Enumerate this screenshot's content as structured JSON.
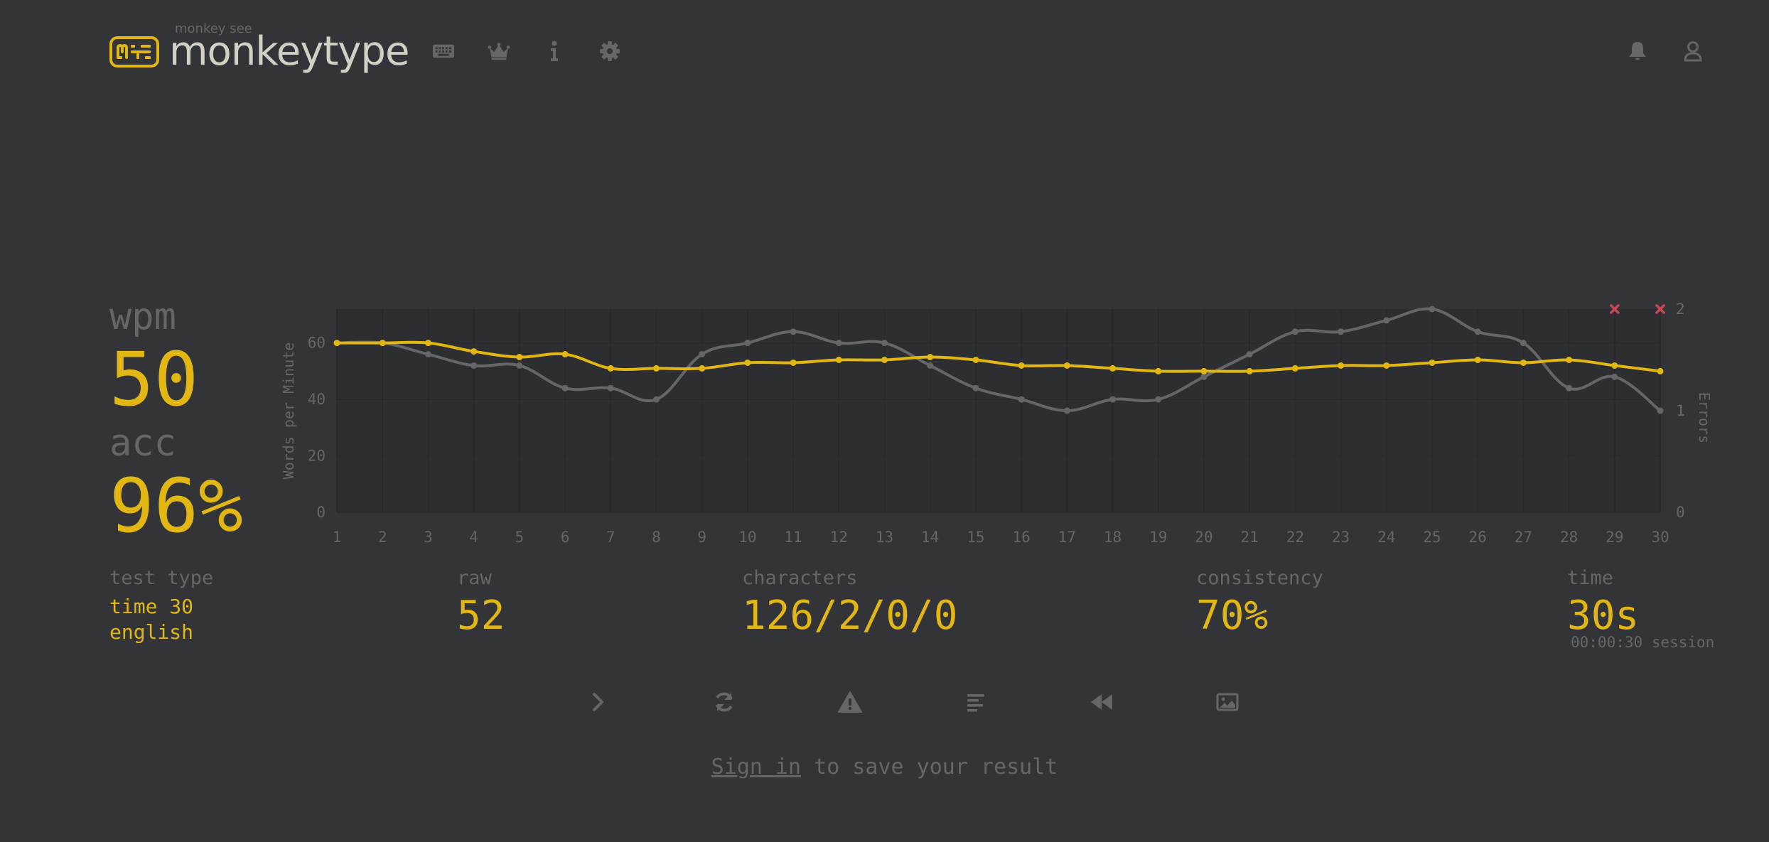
{
  "header": {
    "logo_top": "monkey see",
    "logo_text": "monkeytype",
    "nav_icons": [
      "keyboard-icon",
      "crown-icon",
      "info-icon",
      "gear-icon"
    ],
    "right_icons": [
      "bell-icon",
      "user-icon"
    ]
  },
  "result": {
    "wpm_label": "wpm",
    "wpm_value": "50",
    "acc_label": "acc",
    "acc_value": "96%"
  },
  "stats": {
    "test_type_label": "test type",
    "test_type_line1": "time 30",
    "test_type_line2": "english",
    "raw_label": "raw",
    "raw_value": "52",
    "characters_label": "characters",
    "characters_value": "126/2/0/0",
    "consistency_label": "consistency",
    "consistency_value": "70%",
    "time_label": "time",
    "time_value": "30s",
    "session_text": "00:00:30 session"
  },
  "actions": [
    "next-test-icon",
    "restart-icon",
    "warning-icon",
    "words-history-icon",
    "replay-icon",
    "screenshot-icon"
  ],
  "signin": {
    "link": "Sign in",
    "rest": " to save your result"
  },
  "colors": {
    "background": "#323437",
    "main": "#e2b714",
    "sub": "#646669",
    "text": "#d1d0c5",
    "error": "#ca4754"
  },
  "chart_data": {
    "type": "line",
    "ylabel": "Words per Minute",
    "y2label": "Errors",
    "x": [
      1,
      2,
      3,
      4,
      5,
      6,
      7,
      8,
      9,
      10,
      11,
      12,
      13,
      14,
      15,
      16,
      17,
      18,
      19,
      20,
      21,
      22,
      23,
      24,
      25,
      26,
      27,
      28,
      29,
      30
    ],
    "ylim": [
      0,
      72
    ],
    "y_ticks": [
      "0",
      "20",
      "40",
      "60"
    ],
    "y2lim": [
      0,
      2
    ],
    "y2_ticks": [
      "0",
      "1",
      "2"
    ],
    "series": [
      {
        "name": "wpm",
        "color": "#e2b714",
        "values": [
          60,
          60,
          60,
          57,
          55,
          56,
          51,
          51,
          51,
          53,
          53,
          54,
          54,
          55,
          54,
          52,
          52,
          51,
          50,
          50,
          50,
          51,
          52,
          52,
          53,
          54,
          53,
          54,
          52,
          50
        ]
      },
      {
        "name": "raw",
        "color": "#646669",
        "values": [
          60,
          60,
          56,
          52,
          52,
          44,
          44,
          40,
          56,
          60,
          64,
          60,
          60,
          52,
          44,
          40,
          36,
          40,
          40,
          48,
          56,
          64,
          64,
          68,
          72,
          64,
          60,
          44,
          48,
          36
        ]
      }
    ],
    "errors": [
      {
        "x": 29,
        "value": 2
      },
      {
        "x": 30,
        "value": 2
      }
    ],
    "grid": true
  }
}
